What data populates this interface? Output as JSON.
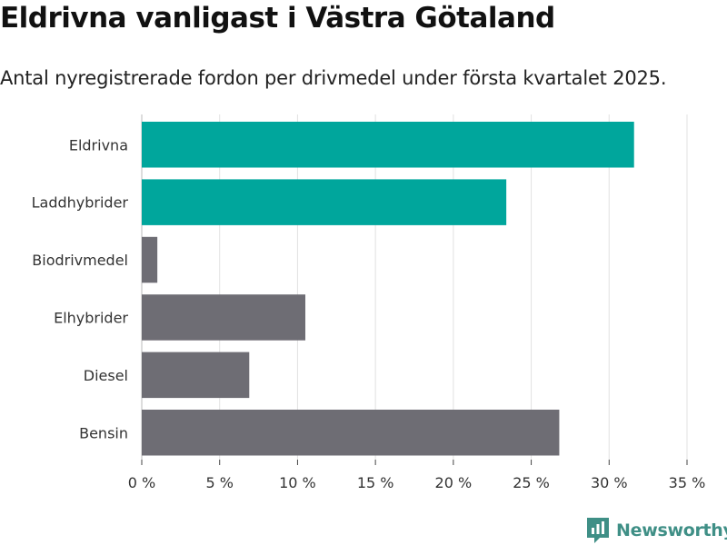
{
  "title": "Eldrivna vanligast i Västra Götaland",
  "subtitle": "Antal nyregistrerade fordon per drivmedel under första kvartalet 2025.",
  "brand": "Newsworthy",
  "colors": {
    "highlight": "#00a69c",
    "other": "#6e6d74",
    "grid": "#e2e2e2",
    "brand": "#3f8f86"
  },
  "chart_data": {
    "type": "bar",
    "orientation": "horizontal",
    "categories": [
      "Eldrivna",
      "Laddhybrider",
      "Biodrivmedel",
      "Elhybrider",
      "Diesel",
      "Bensin"
    ],
    "values": [
      31.6,
      23.4,
      1.0,
      10.5,
      6.9,
      26.8
    ],
    "highlighted": [
      true,
      true,
      false,
      false,
      false,
      false
    ],
    "xlim": [
      0,
      35
    ],
    "xticks": [
      0,
      5,
      10,
      15,
      20,
      25,
      30,
      35
    ],
    "xtick_labels": [
      "0 %",
      "5 %",
      "10 %",
      "15 %",
      "20 %",
      "25 %",
      "30 %",
      "35 %"
    ],
    "grid": true
  }
}
